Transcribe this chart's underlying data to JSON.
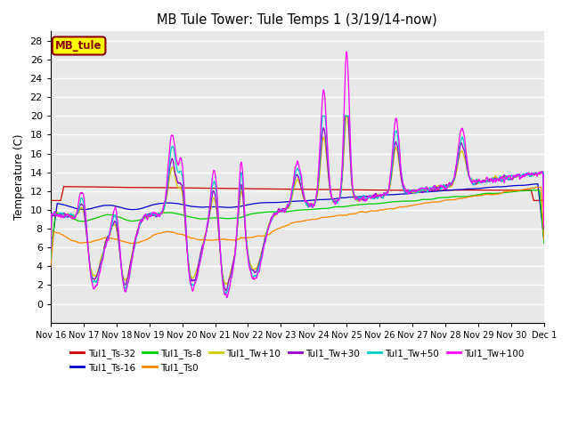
{
  "title": "MB Tule Tower: Tule Temps 1 (3/19/14-now)",
  "ylabel": "Temperature (C)",
  "ylim": [
    -2,
    29
  ],
  "yticks": [
    0,
    2,
    4,
    6,
    8,
    10,
    12,
    14,
    16,
    18,
    20,
    22,
    24,
    26,
    28
  ],
  "xticklabels": [
    "Nov 16",
    "Nov 17",
    "Nov 18",
    "Nov 19",
    "Nov 20",
    "Nov 21",
    "Nov 22",
    "Nov 23",
    "Nov 24",
    "Nov 25",
    "Nov 26",
    "Nov 27",
    "Nov 28",
    "Nov 29",
    "Nov 30",
    "Dec 1"
  ],
  "legend_box_label": "MB_tule",
  "legend_box_color": "#ffff00",
  "legend_box_border": "#8B0000",
  "series": [
    {
      "label": "Tul1_Ts-32",
      "color": "#cc0000"
    },
    {
      "label": "Tul1_Ts-16",
      "color": "#0000cc"
    },
    {
      "label": "Tul1_Ts-8",
      "color": "#00cc00"
    },
    {
      "label": "Tul1_Ts0",
      "color": "#ff8800"
    },
    {
      "label": "Tul1_Tw+10",
      "color": "#cccc00"
    },
    {
      "label": "Tul1_Tw+30",
      "color": "#9900cc"
    },
    {
      "label": "Tul1_Tw+50",
      "color": "#00cccc"
    },
    {
      "label": "Tul1_Tw+100",
      "color": "#ff00ff"
    }
  ],
  "background_color": "#ffffff",
  "plot_bg_color": "#e8e8e8",
  "grid_color": "#ffffff"
}
